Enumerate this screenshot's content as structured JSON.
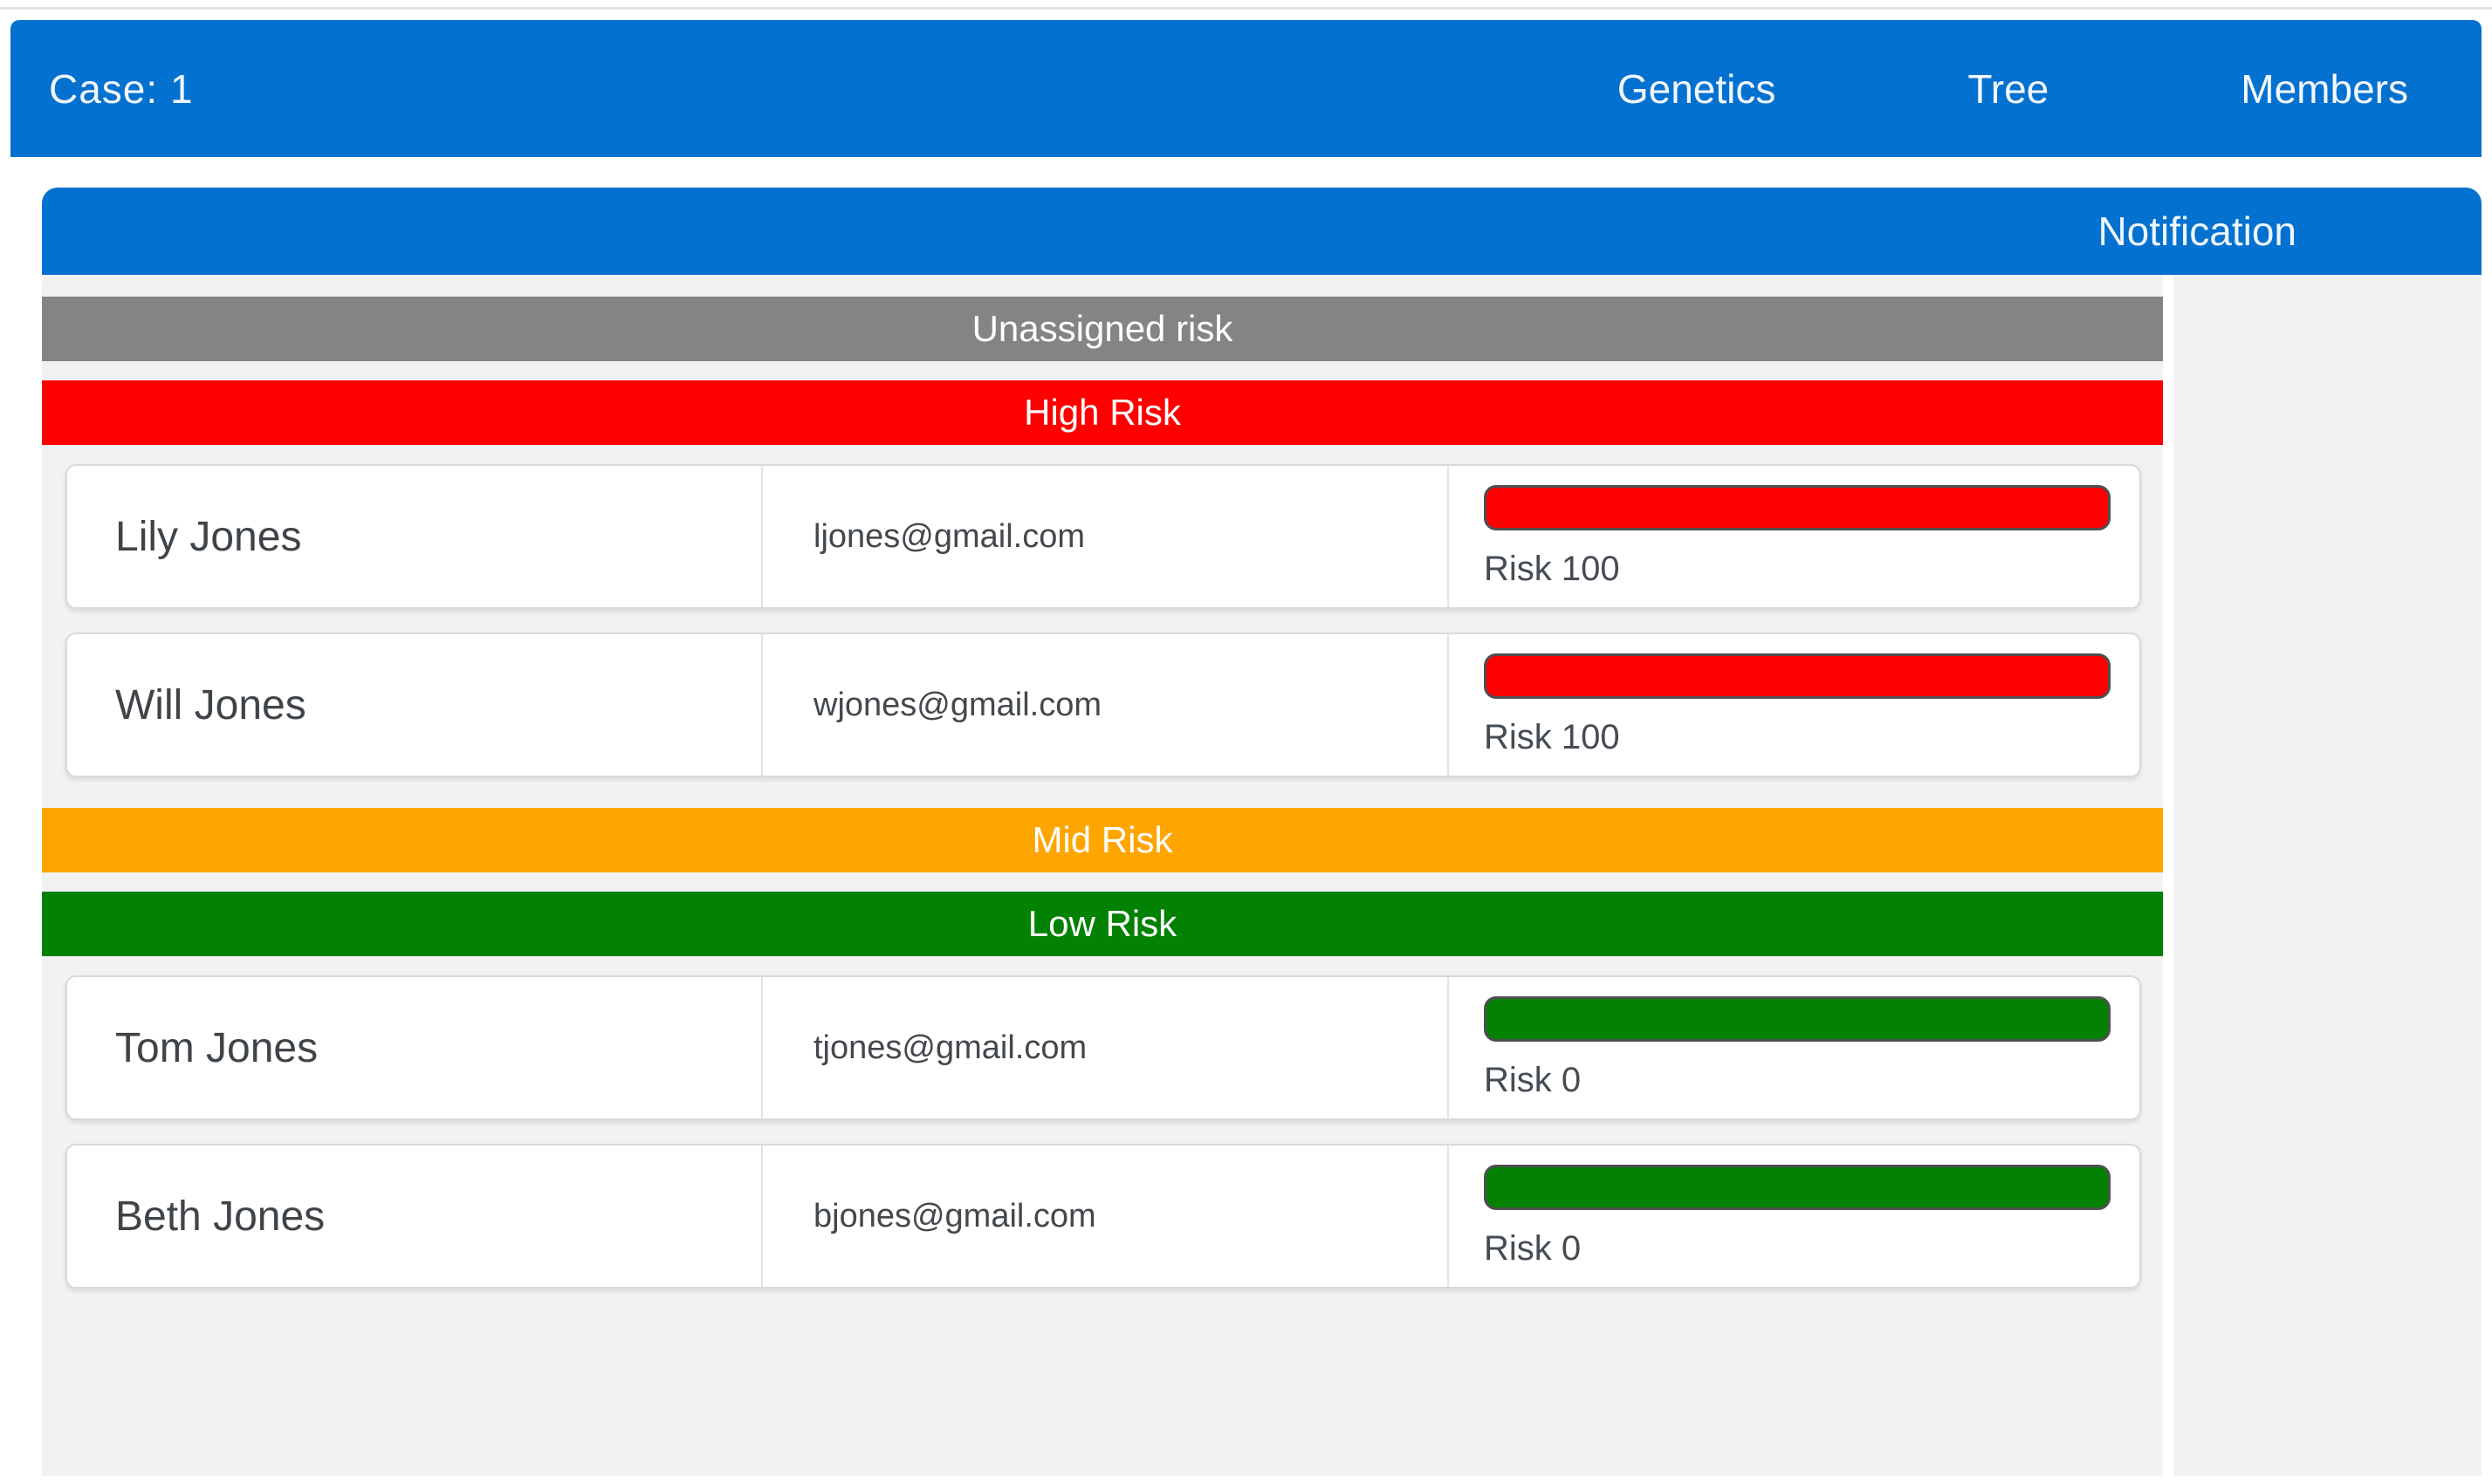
{
  "navbar": {
    "case_label": "Case: 1",
    "items": [
      {
        "label": "Genetics"
      },
      {
        "label": "Tree"
      },
      {
        "label": "Members"
      }
    ]
  },
  "panel": {
    "header_tab": "Notification"
  },
  "sections": [
    {
      "id": "unassigned",
      "label": "Unassigned risk",
      "color": "#848484",
      "members": []
    },
    {
      "id": "high",
      "label": "High Risk",
      "color": "#ff0000",
      "members": [
        {
          "name": "Lily Jones",
          "email": "ljones@gmail.com",
          "risk_label": "Risk 100",
          "risk_value": 100,
          "bar_color": "#ff0000"
        },
        {
          "name": "Will Jones",
          "email": "wjones@gmail.com",
          "risk_label": "Risk 100",
          "risk_value": 100,
          "bar_color": "#ff0000"
        }
      ]
    },
    {
      "id": "mid",
      "label": "Mid Risk",
      "color": "#ffa500",
      "members": []
    },
    {
      "id": "low",
      "label": "Low Risk",
      "color": "#028102",
      "members": [
        {
          "name": "Tom Jones",
          "email": "tjones@gmail.com",
          "risk_label": "Risk 0",
          "risk_value": 0,
          "bar_color": "#028102"
        },
        {
          "name": "Beth Jones",
          "email": "bjones@gmail.com",
          "risk_label": "Risk 0",
          "risk_value": 0,
          "bar_color": "#028102"
        }
      ]
    }
  ],
  "colors": {
    "accent_blue": "#0271cf",
    "panel_background": "#f2f2f3",
    "unassigned_gray": "#848484",
    "high_red": "#ff0000",
    "mid_orange": "#ffa500",
    "low_green": "#028102"
  }
}
